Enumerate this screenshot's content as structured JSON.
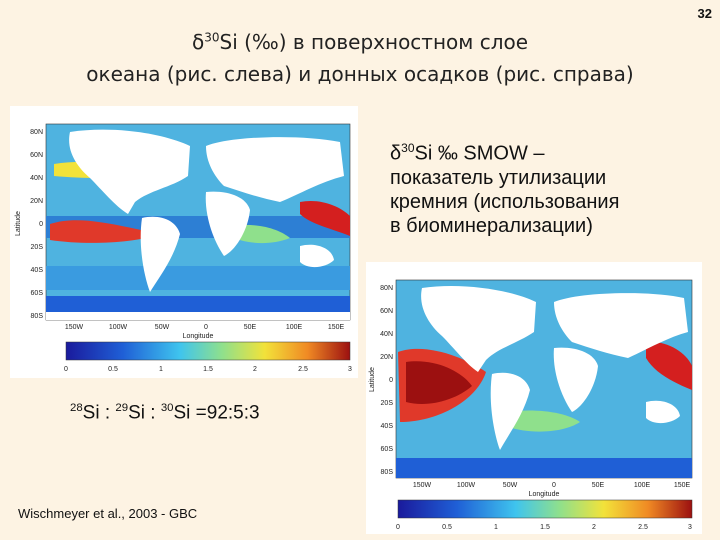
{
  "slide": {
    "number": "32",
    "title_prefix": "δ",
    "title_sup": "30",
    "title_line1_rest": "Si (‰) в поверхностном слое",
    "title_line2": "океана (рис. слева) и донных осадков (рис. справа)"
  },
  "caption": {
    "prefix": "δ",
    "sup": "30",
    "line1_rest": "Si ‰ SMOW –",
    "line2": "показатель утилизации",
    "line3": "кремния (использования",
    "line4": "в биоминерализации)"
  },
  "ratio": {
    "sup1": "28",
    "t1": "Si : ",
    "sup2": "29",
    "t2": "Si : ",
    "sup3": "30",
    "t3": "Si =92:5:3"
  },
  "citation": "Wischmeyer et al., 2003 - GBC",
  "map_axes": {
    "lat_ticks": [
      "80N",
      "60N",
      "40N",
      "20N",
      "0",
      "20S",
      "40S",
      "60S",
      "80S"
    ],
    "lon_ticks": [
      "150W",
      "100W",
      "50W",
      "0",
      "50E",
      "100E",
      "150E"
    ],
    "ylabel": "Latitude",
    "xlabel": "Longitude",
    "colorbar_ticks": [
      "0",
      "0.5",
      "1",
      "1.5",
      "2",
      "2.5",
      "3"
    ]
  },
  "colors": {
    "background": "#fdf3e3",
    "land": "#ffffff",
    "ocean_low": "#1a3fbf",
    "ocean_mid": "#5fc7e8",
    "ocean_high": "#d41f1f"
  }
}
